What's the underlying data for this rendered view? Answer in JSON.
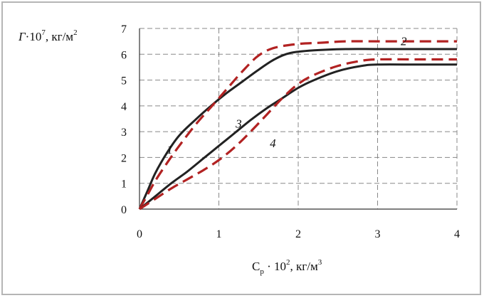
{
  "chart_data": {
    "type": "line",
    "title": "",
    "ylabel_parts": {
      "sym": "Г",
      "base": "·10",
      "exp": "7",
      "unit": ", кг/м",
      "unit_exp": "2"
    },
    "xlabel_parts": {
      "sym": "C",
      "sub": "р",
      "mid": " · 10",
      "exp": "2",
      "unit": ", кг/м",
      "unit_exp": "3"
    },
    "xlim": [
      0,
      4
    ],
    "ylim": [
      0,
      7
    ],
    "x_ticks": [
      "0",
      "1",
      "2",
      "3",
      "4"
    ],
    "y_ticks": [
      "0",
      "1",
      "2",
      "3",
      "4",
      "5",
      "6",
      "7"
    ],
    "grid": true,
    "grid_style": "dashed",
    "series": [
      {
        "name": "1",
        "style": "solid",
        "color": "#222222",
        "x": [
          0,
          0.1,
          0.2,
          0.35,
          0.5,
          0.7,
          0.9,
          1.1,
          1.3,
          1.5,
          1.7,
          1.9,
          2.2,
          2.6,
          3.0,
          3.5,
          4.0
        ],
        "y": [
          0,
          0.7,
          1.4,
          2.2,
          2.85,
          3.45,
          4.0,
          4.5,
          4.95,
          5.4,
          5.8,
          6.05,
          6.15,
          6.2,
          6.2,
          6.2,
          6.2
        ]
      },
      {
        "name": "2",
        "style": "dashed",
        "color": "#b22222",
        "x": [
          0,
          0.1,
          0.2,
          0.35,
          0.5,
          0.7,
          0.9,
          1.1,
          1.3,
          1.5,
          1.7,
          2.0,
          2.3,
          2.6,
          3.0,
          3.5,
          4.0
        ],
        "y": [
          0,
          0.55,
          1.1,
          1.8,
          2.45,
          3.25,
          3.95,
          4.65,
          5.35,
          5.95,
          6.25,
          6.4,
          6.45,
          6.5,
          6.5,
          6.5,
          6.5
        ]
      },
      {
        "name": "3",
        "style": "solid",
        "color": "#222222",
        "x": [
          0,
          0.2,
          0.4,
          0.6,
          0.8,
          1.0,
          1.2,
          1.4,
          1.6,
          1.8,
          2.0,
          2.2,
          2.5,
          2.8,
          3.0,
          3.5,
          4.0
        ],
        "y": [
          0,
          0.5,
          1.0,
          1.45,
          1.95,
          2.45,
          2.95,
          3.45,
          3.9,
          4.3,
          4.7,
          5.0,
          5.35,
          5.55,
          5.6,
          5.6,
          5.6
        ]
      },
      {
        "name": "4",
        "style": "dashed",
        "color": "#b22222",
        "x": [
          0,
          0.2,
          0.4,
          0.6,
          0.8,
          1.0,
          1.2,
          1.4,
          1.6,
          1.8,
          2.0,
          2.2,
          2.5,
          2.8,
          3.0,
          3.5,
          4.0
        ],
        "y": [
          0,
          0.4,
          0.8,
          1.15,
          1.5,
          1.9,
          2.4,
          3.0,
          3.65,
          4.3,
          4.85,
          5.2,
          5.55,
          5.75,
          5.8,
          5.8,
          5.8
        ]
      }
    ],
    "curve_labels": [
      {
        "text": "1",
        "x": 0.38,
        "y": 2.15
      },
      {
        "text": "2",
        "x": 3.33,
        "y": 6.35
      },
      {
        "text": "3",
        "x": 1.25,
        "y": 3.15
      },
      {
        "text": "4",
        "x": 1.68,
        "y": 2.4
      }
    ]
  }
}
